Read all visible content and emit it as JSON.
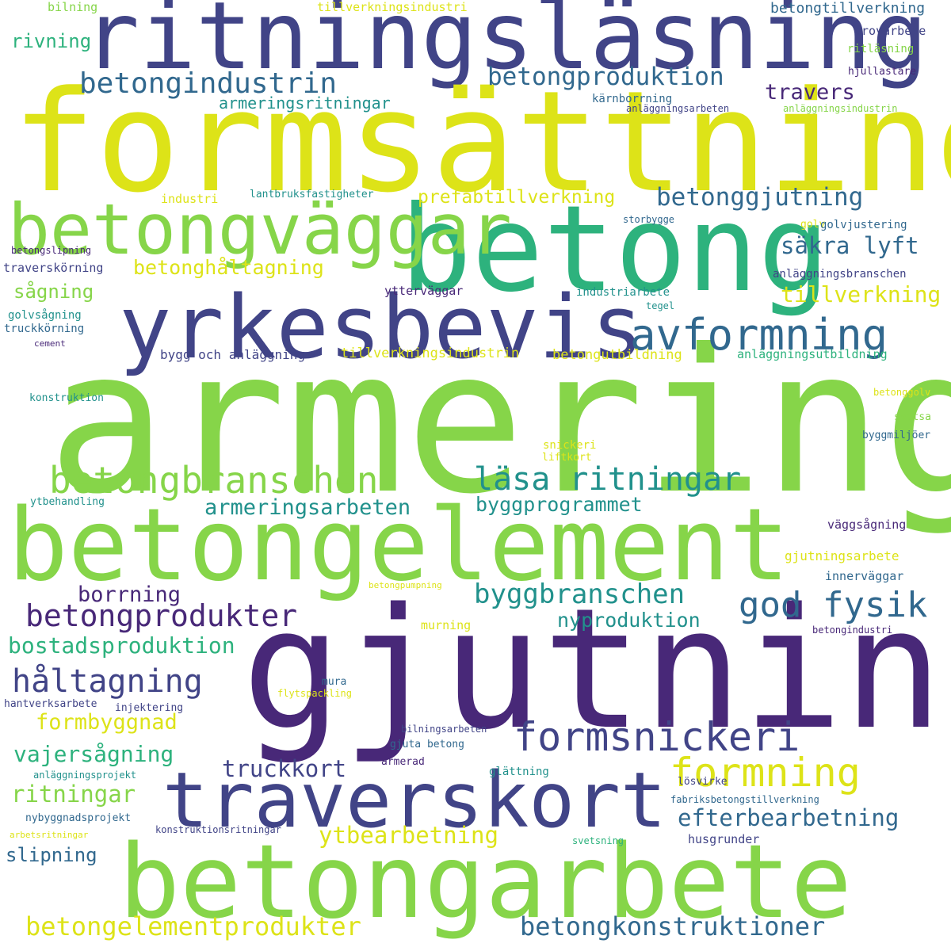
{
  "palette": {
    "yellow": "#dde318",
    "lime": "#86d549",
    "green": "#2db27d",
    "teal": "#21918c",
    "blue": "#31688e",
    "indigo": "#414487",
    "purple": "#482878"
  },
  "words": [
    {
      "text": "ritningsläsning",
      "color": "#414487"
    },
    {
      "text": "formsättning",
      "color": "#dde318"
    },
    {
      "text": "betong",
      "color": "#2db27d"
    },
    {
      "text": "betongväggar",
      "color": "#86d549"
    },
    {
      "text": "yrkesbevis",
      "color": "#414487"
    },
    {
      "text": "armering",
      "color": "#86d549"
    },
    {
      "text": "betongelement",
      "color": "#86d549"
    },
    {
      "text": "gjutning",
      "color": "#482878"
    },
    {
      "text": "traverskort",
      "color": "#414487"
    },
    {
      "text": "betongarbete",
      "color": "#86d549"
    },
    {
      "text": "avformning",
      "color": "#31688e"
    },
    {
      "text": "betongbranschen",
      "color": "#86d549"
    },
    {
      "text": "läsa ritningar",
      "color": "#21918c"
    },
    {
      "text": "betongindustrin",
      "color": "#31688e"
    },
    {
      "text": "betongproduktion",
      "color": "#31688e"
    },
    {
      "text": "betonggjutning",
      "color": "#31688e"
    },
    {
      "text": "formsnickeri",
      "color": "#414487"
    },
    {
      "text": "formning",
      "color": "#dde318"
    },
    {
      "text": "god fysik",
      "color": "#31688e"
    },
    {
      "text": "betongprodukter",
      "color": "#482878"
    },
    {
      "text": "håltagning",
      "color": "#414487"
    },
    {
      "text": "byggbranschen",
      "color": "#21918c"
    },
    {
      "text": "betongelementprodukter",
      "color": "#dde318"
    },
    {
      "text": "betongkonstruktioner",
      "color": "#31688e"
    },
    {
      "text": "säkra lyft",
      "color": "#31688e"
    },
    {
      "text": "travers",
      "color": "#482878"
    },
    {
      "text": "armeringsarbeten",
      "color": "#21918c"
    },
    {
      "text": "byggprogrammet",
      "color": "#21918c"
    },
    {
      "text": "betonghåltagning",
      "color": "#dde318"
    },
    {
      "text": "prefabtillverkning",
      "color": "#dde318"
    },
    {
      "text": "armeringsritningar",
      "color": "#21918c"
    },
    {
      "text": "tillverkning",
      "color": "#dde318"
    },
    {
      "text": "borrning",
      "color": "#482878"
    },
    {
      "text": "bostadsproduktion",
      "color": "#2db27d"
    },
    {
      "text": "formbyggnad",
      "color": "#dde318"
    },
    {
      "text": "vajersågning",
      "color": "#2db27d"
    },
    {
      "text": "ritningar",
      "color": "#86d549"
    },
    {
      "text": "truckkort",
      "color": "#414487"
    },
    {
      "text": "efterbearbetning",
      "color": "#31688e"
    },
    {
      "text": "ytbearbetning",
      "color": "#dde318"
    },
    {
      "text": "nyproduktion",
      "color": "#21918c"
    },
    {
      "text": "slipning",
      "color": "#31688e"
    },
    {
      "text": "sågning",
      "color": "#86d549"
    },
    {
      "text": "rivning",
      "color": "#2db27d"
    },
    {
      "text": "bilning",
      "color": "#86d549"
    },
    {
      "text": "tillverkningsindustri",
      "color": "#dde318"
    },
    {
      "text": "betongtillverkning",
      "color": "#31688e"
    },
    {
      "text": "grovarbete",
      "color": "#414487"
    },
    {
      "text": "ritläsning",
      "color": "#86d549"
    },
    {
      "text": "hjullastare",
      "color": "#482878"
    },
    {
      "text": "kärnborrning",
      "color": "#31688e"
    },
    {
      "text": "anläggningsarbeten",
      "color": "#414487"
    },
    {
      "text": "anläggningsindustrin",
      "color": "#86d549"
    },
    {
      "text": "industri",
      "color": "#dde318"
    },
    {
      "text": "lantbruksfastigheter",
      "color": "#21918c"
    },
    {
      "text": "storbygge",
      "color": "#31688e"
    },
    {
      "text": "golv",
      "color": "#dde318"
    },
    {
      "text": "golvjustering",
      "color": "#31688e"
    },
    {
      "text": "betongslipning",
      "color": "#482878"
    },
    {
      "text": "traverskörning",
      "color": "#414487"
    },
    {
      "text": "anläggningsbranschen",
      "color": "#414487"
    },
    {
      "text": "industriarbete",
      "color": "#21918c"
    },
    {
      "text": "tegel",
      "color": "#21918c"
    },
    {
      "text": "ytterväggar",
      "color": "#482878"
    },
    {
      "text": "golvsågning",
      "color": "#21918c"
    },
    {
      "text": "truckkörning",
      "color": "#31688e"
    },
    {
      "text": "cement",
      "color": "#482878"
    },
    {
      "text": "bygg och anläggning",
      "color": "#414487"
    },
    {
      "text": "tillverkningsindustrin",
      "color": "#dde318"
    },
    {
      "text": "betongutbildning",
      "color": "#dde318"
    },
    {
      "text": "anläggningsutbildning",
      "color": "#2db27d"
    },
    {
      "text": "konstruktion",
      "color": "#21918c"
    },
    {
      "text": "betonggolv",
      "color": "#dde318"
    },
    {
      "text": "svetsa",
      "color": "#86d549"
    },
    {
      "text": "byggmiljöer",
      "color": "#31688e"
    },
    {
      "text": "snickeri",
      "color": "#dde318"
    },
    {
      "text": "liftkort",
      "color": "#dde318"
    },
    {
      "text": "ytbehandling",
      "color": "#21918c"
    },
    {
      "text": "väggsågning",
      "color": "#482878"
    },
    {
      "text": "gjutningsarbete",
      "color": "#dde318"
    },
    {
      "text": "innerväggar",
      "color": "#31688e"
    },
    {
      "text": "betongpumpning",
      "color": "#dde318"
    },
    {
      "text": "murning",
      "color": "#dde318"
    },
    {
      "text": "betongindustri",
      "color": "#482878"
    },
    {
      "text": "mura",
      "color": "#31688e"
    },
    {
      "text": "flytspackling",
      "color": "#dde318"
    },
    {
      "text": "hantverksarbete",
      "color": "#414487"
    },
    {
      "text": "injektering",
      "color": "#414487"
    },
    {
      "text": "bilningsarbeten",
      "color": "#414487"
    },
    {
      "text": "gjuta betong",
      "color": "#31688e"
    },
    {
      "text": "armerad",
      "color": "#482878"
    },
    {
      "text": "anläggningsprojekt",
      "color": "#21918c"
    },
    {
      "text": "glättning",
      "color": "#21918c"
    },
    {
      "text": "lösvirke",
      "color": "#414487"
    },
    {
      "text": "fabriksbetongstillverkning",
      "color": "#31688e"
    },
    {
      "text": "nybyggnadsprojekt",
      "color": "#31688e"
    },
    {
      "text": "konstruktionsritningar",
      "color": "#414487"
    },
    {
      "text": "arbetsritningar",
      "color": "#dde318"
    },
    {
      "text": "svetsning",
      "color": "#2db27d"
    },
    {
      "text": "husgrunder",
      "color": "#414487"
    }
  ]
}
